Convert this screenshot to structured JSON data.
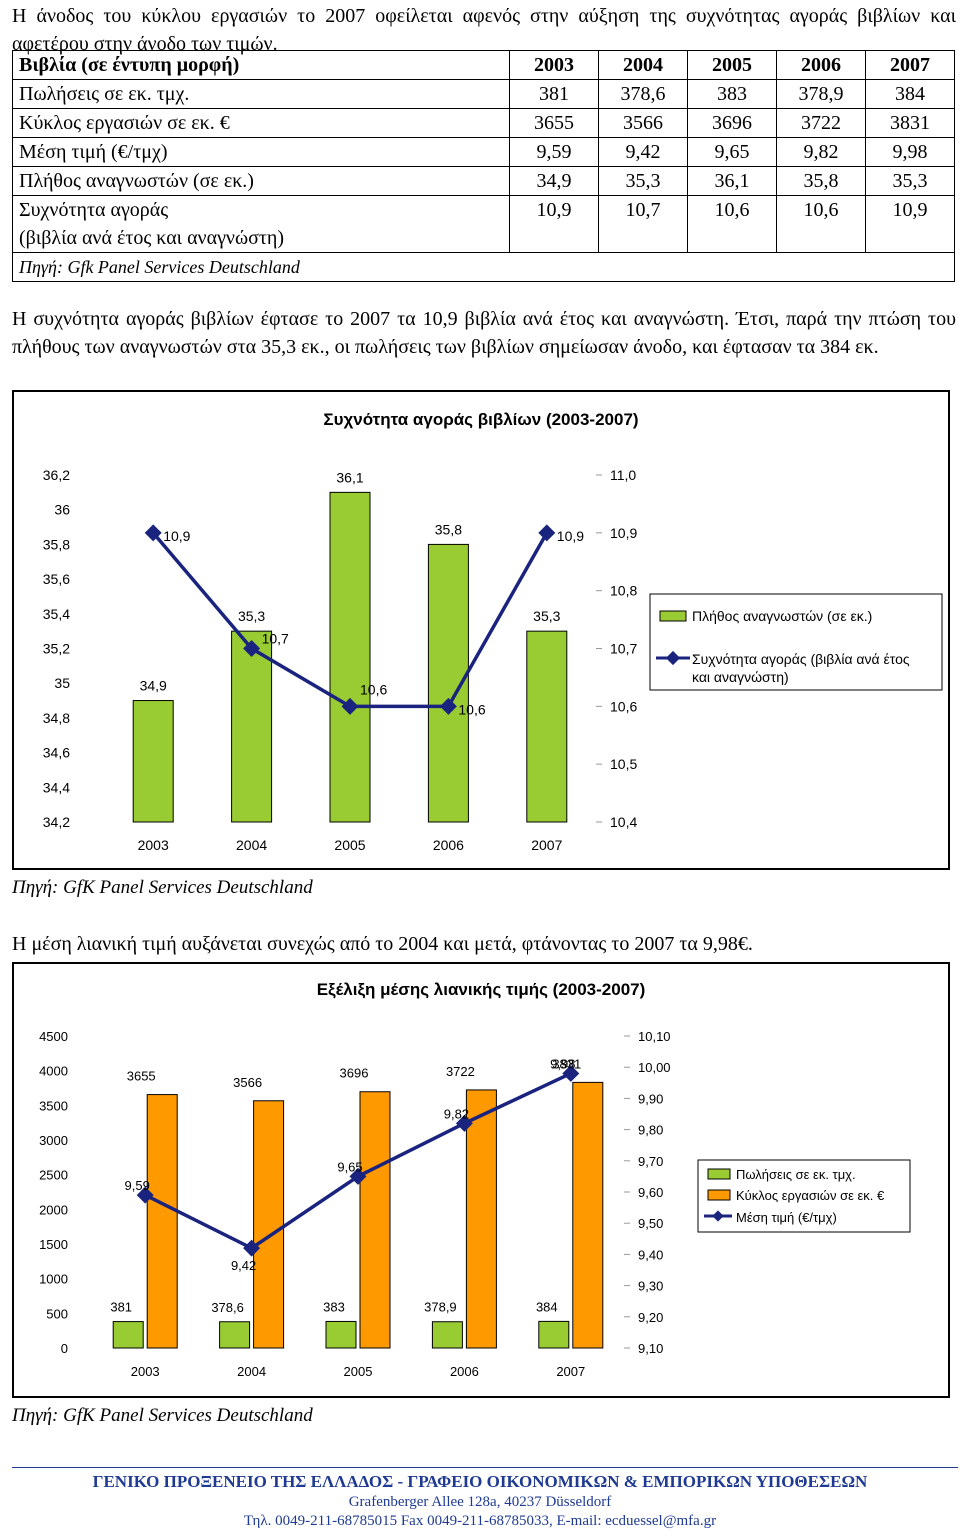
{
  "intro_text": "Η άνοδος του κύκλου εργασιών το 2007 οφείλεται αφενός στην αύξηση της συχνότητας αγοράς βιβλίων και αφετέρου στην άνοδο των τιμών.",
  "table": {
    "header": "Βιβλία (σε έντυπη μορφή)",
    "years": [
      "2003",
      "2004",
      "2005",
      "2006",
      "2007"
    ],
    "rows": [
      {
        "label": "Πωλήσεις σε εκ. τμχ.",
        "values": [
          "381",
          "378,6",
          "383",
          "378,9",
          "384"
        ]
      },
      {
        "label": "Κύκλος εργασιών σε εκ. €",
        "values": [
          "3655",
          "3566",
          "3696",
          "3722",
          "3831"
        ]
      },
      {
        "label": "Μέση τιμή (€/τμχ)",
        "values": [
          "9,59",
          "9,42",
          "9,65",
          "9,82",
          "9,98"
        ]
      },
      {
        "label": "Πλήθος αναγνωστών (σε εκ.)",
        "values": [
          "34,9",
          "35,3",
          "36,1",
          "35,8",
          "35,3"
        ]
      }
    ],
    "freq_row": {
      "label1": "Συχνότητα αγοράς",
      "label2": "(βιβλία ανά έτος και αναγνώστη)",
      "values": [
        "10,9",
        "10,7",
        "10,6",
        "10,6",
        "10,9"
      ]
    },
    "source": "Πηγή: Gfk Panel Services Deutschland"
  },
  "para2": "Η συχνότητα αγοράς βιβλίων έφτασε το 2007 τα 10,9 βιβλία ανά έτος και αναγνώστη. Έτσι, παρά την πτώση του πλήθους των αναγνωστών στα 35,3 εκ., οι πωλήσεις των βιβλίων σημείωσαν άνοδο, και έφτασαν τα 384 εκ.",
  "para3": "Η μέση λιανική τιμή αυξάνεται συνεχώς από το 2004 και μετά, φτάνοντας το 2007 τα 9,98€.",
  "source1": "Πηγή: GfK Panel Services Deutschland",
  "source2": "Πηγή: GfK Panel Services Deutschland",
  "footer": {
    "line1": "ΓΕΝΙΚΟ ΠΡΟΞΕΝΕΙΟ ΤΗΣ ΕΛΛΑΔΟΣ - ΓΡΑΦΕΙΟ ΟΙΚΟΝΟΜΙΚΩΝ & ΕΜΠΟΡΙΚΩΝ ΥΠΟΘΕΣΕΩΝ",
    "line2": "Grafenberger Allee 128a, 40237 Düsseldorf",
    "line3": "Τηλ. 0049-211-68785015 Fax 0049-211-68785033, E-mail: ecduessel@mfa.gr"
  },
  "colors": {
    "bar_green": "#99cc33",
    "bar_orange": "#ff9900",
    "line_navy": "#1a237e",
    "footer_blue": "#1f3a93"
  },
  "chart_data": [
    {
      "type": "bar",
      "title": "Συχνότητα αγοράς βιβλίων (2003-2007)",
      "categories": [
        "2003",
        "2004",
        "2005",
        "2006",
        "2007"
      ],
      "series": [
        {
          "name": "Πλήθος αναγνωστών (σε εκ.)",
          "chart": "bar",
          "axis": "left",
          "values": [
            34.9,
            35.3,
            36.1,
            35.8,
            35.3
          ],
          "labels": [
            "34,9",
            "35,3",
            "36,1",
            "35,8",
            "35,3"
          ]
        },
        {
          "name": "Συχνότητα αγοράς (βιβλία ανά έτος και αναγνώστη)",
          "chart": "line",
          "axis": "right",
          "values": [
            10.9,
            10.7,
            10.6,
            10.6,
            10.9
          ],
          "labels": [
            "10,9",
            "10,7",
            "10,6",
            "10,6",
            "10,9"
          ]
        }
      ],
      "ylim_left": [
        34.2,
        36.2
      ],
      "yticks_left": [
        "36,2",
        "36",
        "35,8",
        "35,6",
        "35,4",
        "35,2",
        "35",
        "34,8",
        "34,6",
        "34,4",
        "34,2"
      ],
      "ylim_right": [
        10.4,
        11.0
      ],
      "yticks_right": [
        "11,0",
        "10,9",
        "10,8",
        "10,7",
        "10,6",
        "10,5",
        "10,4"
      ],
      "legend": "right"
    },
    {
      "type": "bar",
      "title": "Εξέλιξη μέσης λιανικής τιμής (2003-2007)",
      "categories": [
        "2003",
        "2004",
        "2005",
        "2006",
        "2007"
      ],
      "series": [
        {
          "name": "Πωλήσεις σε εκ. τμχ.",
          "chart": "bar",
          "axis": "left",
          "values": [
            381,
            378.6,
            383,
            378.9,
            384
          ],
          "labels": [
            "381",
            "378,6",
            "383",
            "378,9",
            "384"
          ]
        },
        {
          "name": "Κύκλος εργασιών σε εκ. €",
          "chart": "bar",
          "axis": "left",
          "values": [
            3655,
            3566,
            3696,
            3722,
            3831
          ],
          "labels": [
            "3655",
            "3566",
            "3696",
            "3722",
            "3831"
          ]
        },
        {
          "name": "Μέση τιμή (€/τμχ)",
          "chart": "line",
          "axis": "right",
          "values": [
            9.59,
            9.42,
            9.65,
            9.82,
            9.98
          ],
          "labels": [
            "9,59",
            "9,42",
            "9,65",
            "9,82",
            "9,98"
          ]
        }
      ],
      "ylim_left": [
        0,
        4500
      ],
      "yticks_left": [
        "4500",
        "4000",
        "3500",
        "3000",
        "2500",
        "2000",
        "1500",
        "1000",
        "500",
        "0"
      ],
      "ylim_right": [
        9.1,
        10.1
      ],
      "yticks_right": [
        "10,10",
        "10,00",
        "9,90",
        "9,80",
        "9,70",
        "9,60",
        "9,50",
        "9,40",
        "9,30",
        "9,20",
        "9,10"
      ],
      "legend": "right"
    }
  ]
}
